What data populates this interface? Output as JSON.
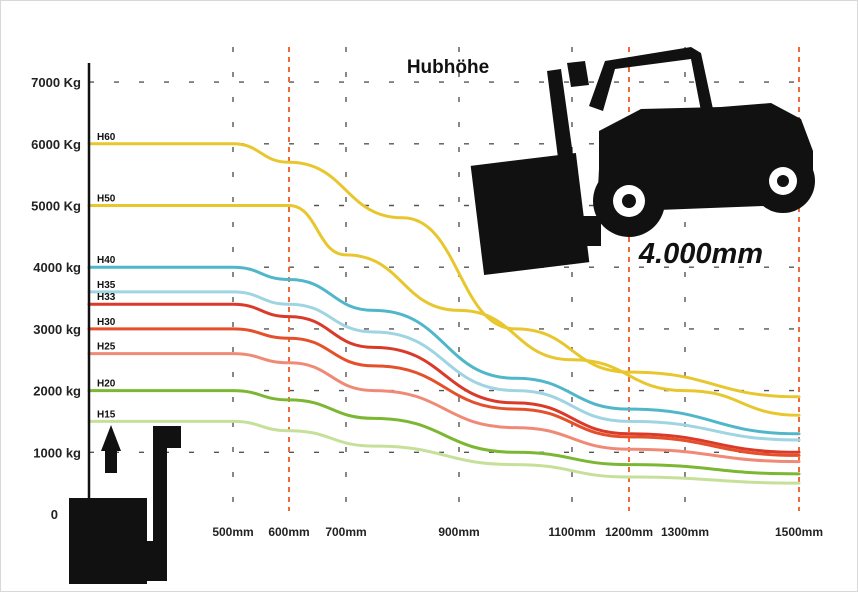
{
  "chart_data": {
    "type": "line",
    "title": "Hubhöhe",
    "annotation": "4.000mm",
    "y_ticks": [
      "0",
      "1000 kg",
      "2000 kg",
      "3000 kg",
      "4000 kg",
      "5000 Kg",
      "6000 Kg",
      "7000 Kg"
    ],
    "x_ticks": [
      "500mm",
      "600mm",
      "700mm",
      "900mm",
      "1100mm",
      "1200mm",
      "1300mm",
      "1500mm"
    ],
    "x_tick_values": [
      500,
      600,
      700,
      900,
      1100,
      1200,
      1300,
      1500
    ],
    "ylim": [
      0,
      7000
    ],
    "grid": true,
    "highlight_x": [
      600,
      1200,
      1500
    ],
    "series": [
      {
        "name": "H60",
        "color": "#e8c72e",
        "x": [
          250,
          500,
          600,
          800,
          1000,
          1200,
          1500
        ],
        "values": [
          6000,
          6000,
          5700,
          4800,
          3000,
          2300,
          1900
        ]
      },
      {
        "name": "H50",
        "color": "#e8c72e",
        "x": [
          250,
          600,
          700,
          900,
          1100,
          1300,
          1500
        ],
        "values": [
          5000,
          5000,
          4200,
          3300,
          2500,
          2000,
          1600
        ]
      },
      {
        "name": "H40",
        "color": "#4fb7c9",
        "x": [
          250,
          500,
          600,
          750,
          1000,
          1200,
          1500
        ],
        "values": [
          4000,
          4000,
          3800,
          3300,
          2200,
          1700,
          1300
        ]
      },
      {
        "name": "H35",
        "color": "#9fd4e2",
        "x": [
          250,
          500,
          600,
          750,
          1000,
          1200,
          1500
        ],
        "values": [
          3600,
          3600,
          3400,
          2950,
          2000,
          1500,
          1200
        ]
      },
      {
        "name": "H33",
        "color": "#d93a2a",
        "x": [
          250,
          500,
          600,
          750,
          1000,
          1200,
          1500
        ],
        "values": [
          3400,
          3400,
          3200,
          2700,
          1800,
          1300,
          1000
        ]
      },
      {
        "name": "H30",
        "color": "#e5502b",
        "x": [
          250,
          500,
          600,
          750,
          1000,
          1200,
          1500
        ],
        "values": [
          3000,
          3000,
          2850,
          2400,
          1700,
          1250,
          950
        ]
      },
      {
        "name": "H25",
        "color": "#f08a77",
        "x": [
          250,
          500,
          600,
          750,
          1000,
          1200,
          1500
        ],
        "values": [
          2600,
          2600,
          2450,
          2000,
          1400,
          1050,
          850
        ]
      },
      {
        "name": "H20",
        "color": "#7cb733",
        "x": [
          250,
          500,
          600,
          750,
          1000,
          1200,
          1500
        ],
        "values": [
          2000,
          2000,
          1850,
          1550,
          1000,
          800,
          650
        ]
      },
      {
        "name": "H15",
        "color": "#c6e09a",
        "x": [
          250,
          500,
          600,
          750,
          1000,
          1200,
          1500
        ],
        "values": [
          1500,
          1500,
          1350,
          1100,
          800,
          600,
          500
        ]
      }
    ]
  }
}
